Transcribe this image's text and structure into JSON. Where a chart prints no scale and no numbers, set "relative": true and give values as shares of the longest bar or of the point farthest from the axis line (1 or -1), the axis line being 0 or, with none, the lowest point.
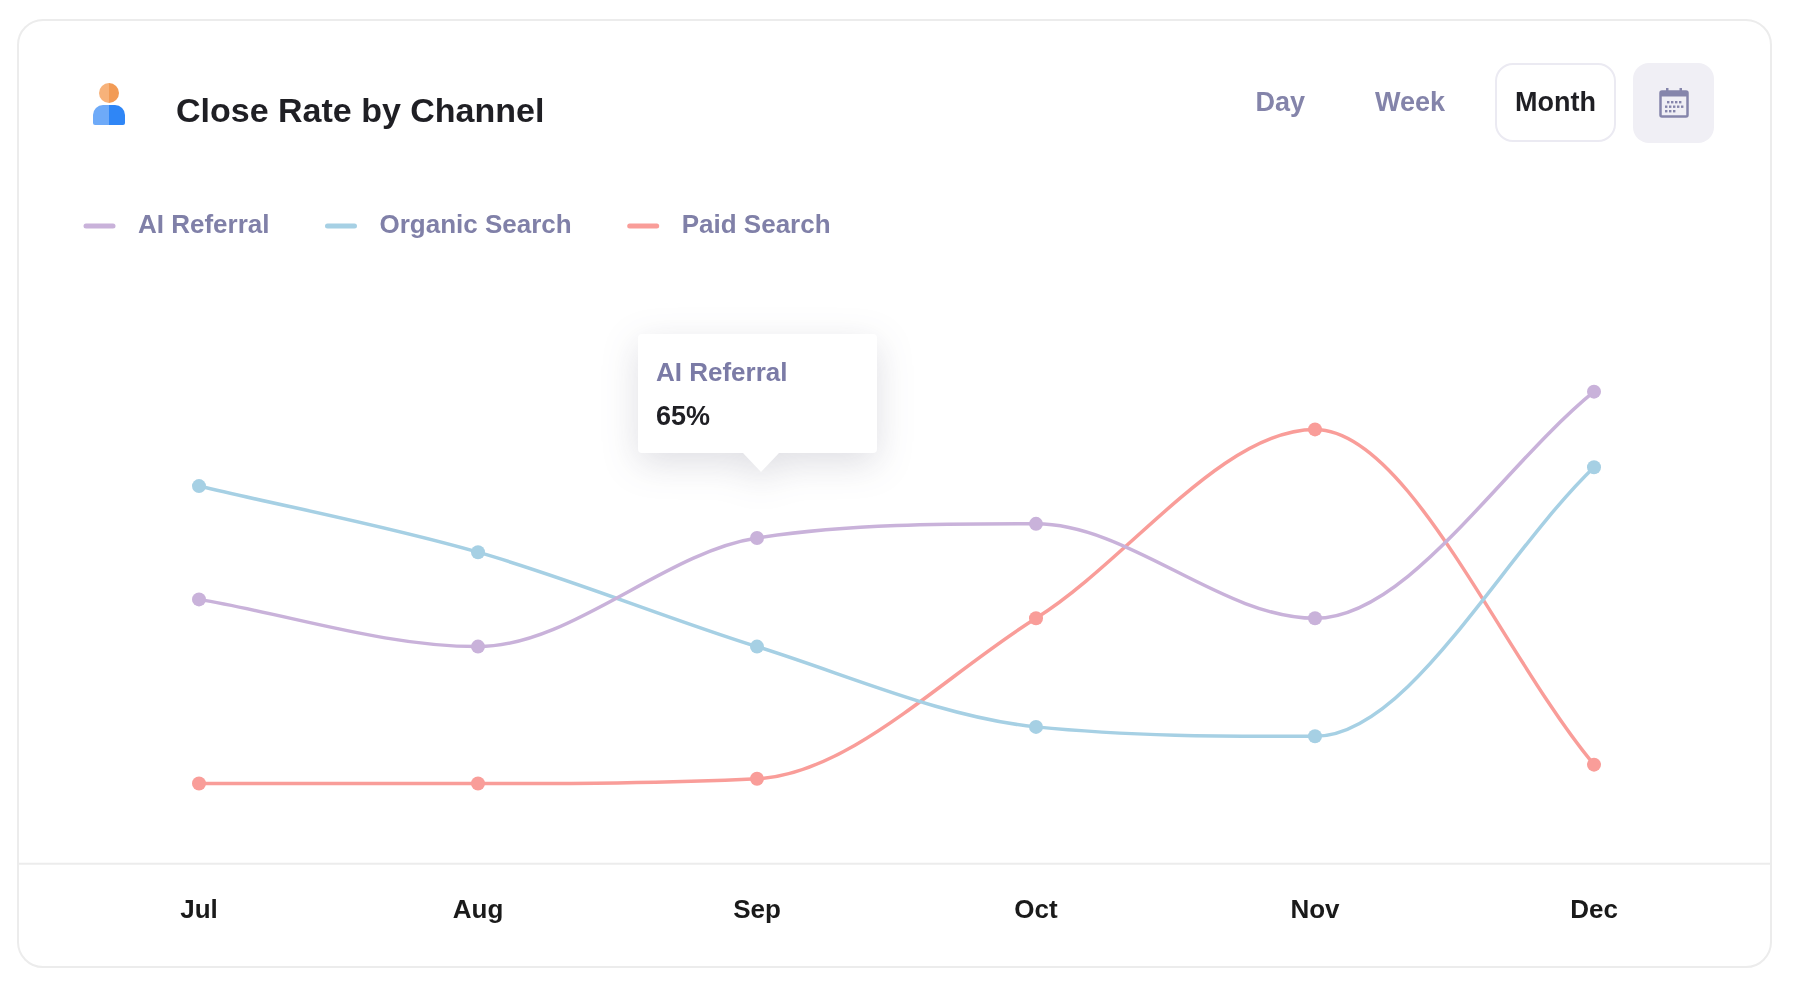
{
  "chart_data": {
    "type": "line",
    "title": "Close Rate by Channel",
    "categories": [
      "Jul",
      "Aug",
      "Sep",
      "Oct",
      "Nov",
      "Dec"
    ],
    "relative": true,
    "series": [
      {
        "name": "AI Referral",
        "color": "#c9b2da",
        "values": [
          0.56,
          0.46,
          0.69,
          0.72,
          0.52,
          1
        ]
      },
      {
        "name": "Organic Search",
        "color": "#a6d0e4",
        "values": [
          0.8,
          0.66,
          0.46,
          0.29,
          0.27,
          0.84
        ]
      },
      {
        "name": "Paid Search",
        "color": "#f99d99",
        "values": [
          0.17,
          0.17,
          0.18,
          0.52,
          0.92,
          0.21
        ]
      }
    ],
    "legend": "top left",
    "marker": "circle",
    "line_style": "solid",
    "annotations": [
      "AI Referral\n65%",
      "Day",
      "Week",
      "Month"
    ]
  }
}
